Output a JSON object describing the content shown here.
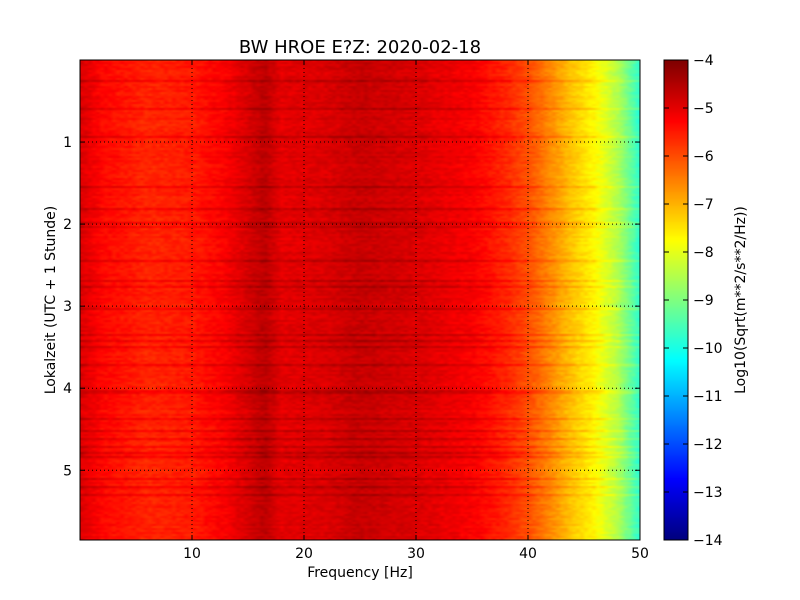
{
  "chart_data": {
    "type": "heatmap",
    "title": "BW HROE E?Z: 2020-02-18",
    "xlabel": "Frequency [Hz]",
    "ylabel": "Lokalzeit (UTC + 1 Stunde)",
    "colorbar_label": "Log10(Sqrt(m**2/s**2/Hz))",
    "xlim": [
      0,
      50
    ],
    "ylim": [
      5.85,
      0
    ],
    "y_inverted": true,
    "x_ticks": [
      10,
      20,
      30,
      40,
      50
    ],
    "x_tick_labels": [
      "10",
      "20",
      "30",
      "40",
      "50"
    ],
    "y_ticks": [
      1,
      2,
      3,
      4,
      5
    ],
    "y_tick_labels": [
      "1",
      "2",
      "3",
      "4",
      "5"
    ],
    "color_range": [
      -14,
      -4
    ],
    "colorbar_ticks": [
      -4,
      -5,
      -6,
      -7,
      -8,
      -9,
      -10,
      -11,
      -12,
      -13,
      -14
    ],
    "colorbar_tick_labels": [
      "−4",
      "−5",
      "−6",
      "−7",
      "−8",
      "−9",
      "−10",
      "−11",
      "−12",
      "−13",
      "−14"
    ],
    "colormap": "jet",
    "grid": true,
    "grid_style": "dotted",
    "spectral_profile_log10": [
      {
        "f": 0,
        "v": -4.9
      },
      {
        "f": 2,
        "v": -5.3
      },
      {
        "f": 6,
        "v": -5.6
      },
      {
        "f": 10,
        "v": -5.5
      },
      {
        "f": 13,
        "v": -5.2
      },
      {
        "f": 16.5,
        "v": -4.6
      },
      {
        "f": 18,
        "v": -5.0
      },
      {
        "f": 22,
        "v": -4.9
      },
      {
        "f": 25,
        "v": -4.7
      },
      {
        "f": 30,
        "v": -4.9
      },
      {
        "f": 35,
        "v": -5.2
      },
      {
        "f": 38,
        "v": -5.6
      },
      {
        "f": 40,
        "v": -6.0
      },
      {
        "f": 42,
        "v": -6.6
      },
      {
        "f": 44,
        "v": -7.2
      },
      {
        "f": 46,
        "v": -7.7
      },
      {
        "f": 48,
        "v": -8.5
      },
      {
        "f": 50,
        "v": -9.8
      }
    ]
  }
}
